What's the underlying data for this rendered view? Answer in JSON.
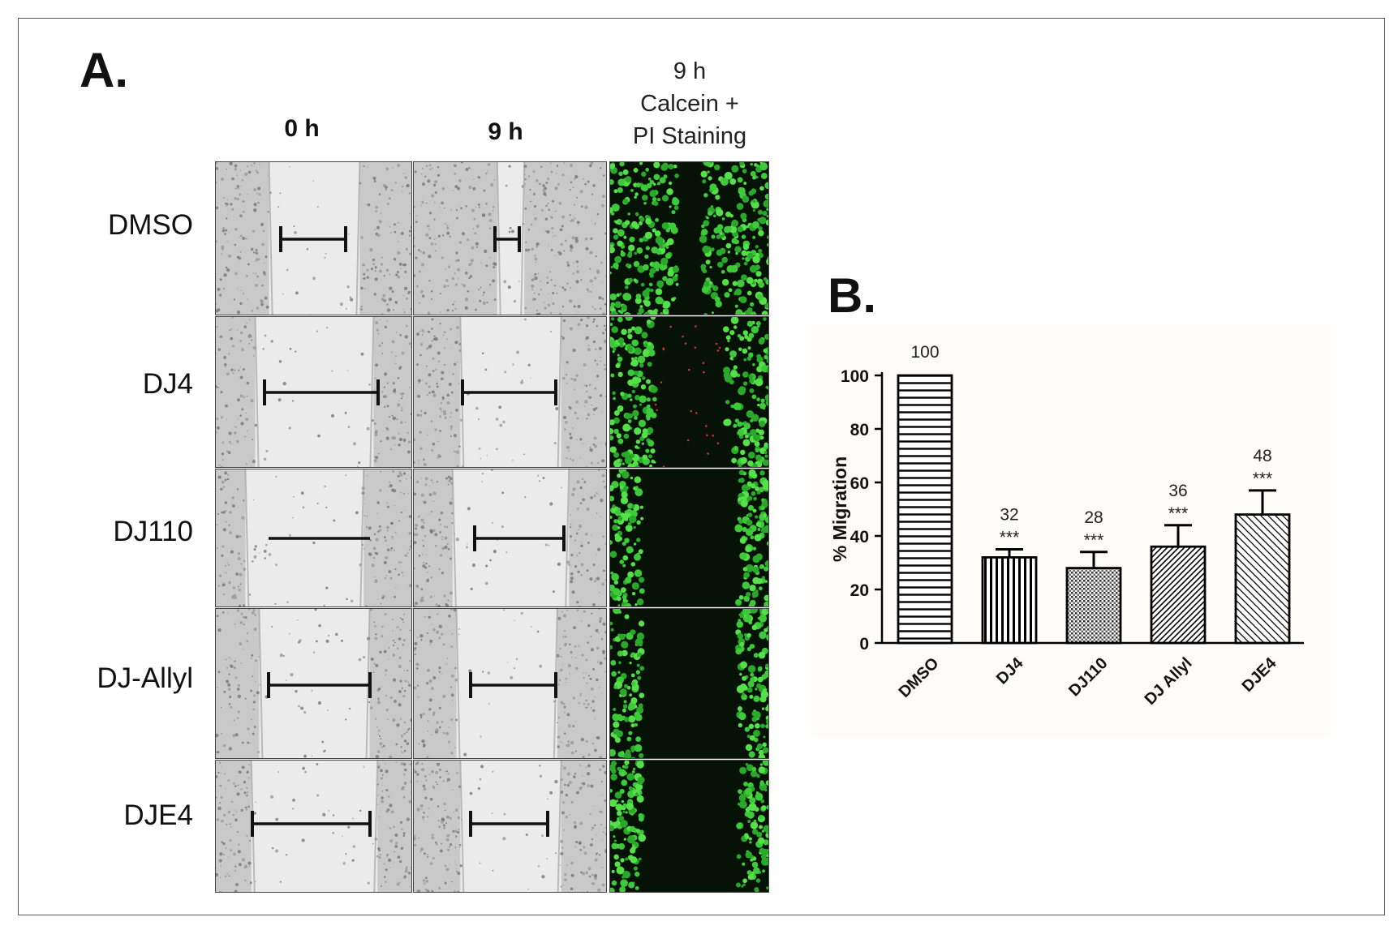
{
  "panelA": {
    "label": "A.",
    "columns": [
      "0 h",
      "9 h"
    ],
    "column3_lines": [
      "9 h",
      "Calcein +",
      "PI Staining"
    ],
    "rows": [
      "DMSO",
      "DJ4",
      "DJ110",
      "DJ-Allyl",
      "DJE4"
    ],
    "colors": {
      "brightfield": "#d8d8d8",
      "fluor_green": "#3ec93a",
      "fluor_red": "#d03030",
      "fluor_dark": "#061206"
    }
  },
  "panelB": {
    "label": "B."
  },
  "chart_data": {
    "type": "bar",
    "categories": [
      "DMSO",
      "DJ4",
      "DJ110",
      "DJ Allyl",
      "DJE4"
    ],
    "values": [
      100,
      32,
      28,
      36,
      48
    ],
    "errors": [
      0,
      3,
      6,
      8,
      9
    ],
    "value_labels": [
      "100",
      "32",
      "28",
      "36",
      "48"
    ],
    "significance": [
      "",
      "***",
      "***",
      "***",
      "***"
    ],
    "ylabel": "% Migration",
    "ylim": [
      0,
      100
    ],
    "yticks": [
      "0",
      "20",
      "40",
      "60",
      "80",
      "100"
    ],
    "grid": false,
    "legend": "none"
  }
}
